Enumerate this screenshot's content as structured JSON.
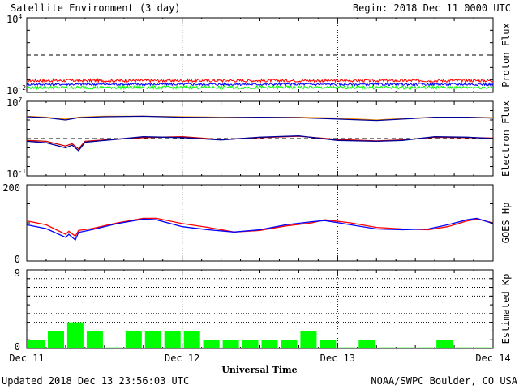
{
  "header": {
    "title": "Satellite Environment (3 day)",
    "begin": "Begin:  2018 Dec 11 0000 UTC"
  },
  "footer": {
    "updated": "Updated 2018 Dec 13 23:56:03 UTC",
    "credit": "NOAA/SWPC Boulder, CO USA"
  },
  "colors": {
    "red": "#ff0000",
    "blue": "#0000ff",
    "green": "#00ff00",
    "orange": "#ff9900",
    "dark_red": "#cc0000",
    "dark_blue": "#000099"
  },
  "x_axis": {
    "label": "Universal Time",
    "ticks": [
      "Dec 11",
      "Dec 12",
      "Dec 13",
      "Dec 14"
    ],
    "xlim": [
      0,
      72
    ],
    "day_markers": [
      24,
      48
    ]
  },
  "chart_data": [
    {
      "id": "proton",
      "type": "line",
      "ylabel": "Proton Flux",
      "scale": "log",
      "ylim_exp": [
        -2,
        4
      ],
      "tick_labels": [
        {
          "base": "10",
          "exp": "4",
          "value_exp": 4
        },
        {
          "base": "10",
          "exp": "-2",
          "value_exp": -2
        }
      ],
      "threshold_exp": 1,
      "series": [
        {
          "color": "#ff0000",
          "base_exp": -1.05,
          "noise": 0.12
        },
        {
          "color": "#0000ff",
          "base_exp": -1.35,
          "noise": 0.1
        },
        {
          "color": "#00ff00",
          "base_exp": -1.6,
          "noise": 0.12
        }
      ]
    },
    {
      "id": "electron",
      "type": "line",
      "ylabel": "Electron Flux",
      "scale": "log",
      "ylim_exp": [
        -1,
        7
      ],
      "tick_labels": [
        {
          "base": "10",
          "exp": "7",
          "value_exp": 7
        },
        {
          "base": "10",
          "exp": "-1",
          "value_exp": -1
        }
      ],
      "threshold_exp": 3,
      "series": [
        {
          "color": "#ff9900",
          "points": [
            [
              0,
              5.4
            ],
            [
              3,
              5.3
            ],
            [
              6,
              5.1
            ],
            [
              8,
              5.3
            ],
            [
              12,
              5.4
            ],
            [
              18,
              5.4
            ],
            [
              24,
              5.35
            ],
            [
              30,
              5.3
            ],
            [
              36,
              5.3
            ],
            [
              42,
              5.3
            ],
            [
              48,
              5.2
            ],
            [
              54,
              5.0
            ],
            [
              58,
              5.15
            ],
            [
              63,
              5.3
            ],
            [
              68,
              5.3
            ],
            [
              72,
              5.25
            ]
          ]
        },
        {
          "color": "#000099",
          "points": [
            [
              0,
              5.35
            ],
            [
              3,
              5.25
            ],
            [
              6,
              5.0
            ],
            [
              8,
              5.25
            ],
            [
              12,
              5.35
            ],
            [
              18,
              5.4
            ],
            [
              24,
              5.3
            ],
            [
              30,
              5.25
            ],
            [
              36,
              5.3
            ],
            [
              42,
              5.25
            ],
            [
              48,
              5.1
            ],
            [
              54,
              4.95
            ],
            [
              58,
              5.1
            ],
            [
              63,
              5.3
            ],
            [
              68,
              5.3
            ],
            [
              72,
              5.2
            ]
          ]
        },
        {
          "color": "#cc0000",
          "points": [
            [
              0,
              2.8
            ],
            [
              3,
              2.7
            ],
            [
              6,
              2.2
            ],
            [
              7,
              2.45
            ],
            [
              8,
              1.9
            ],
            [
              9,
              2.7
            ],
            [
              12,
              2.85
            ],
            [
              18,
              3.1
            ],
            [
              24,
              3.2
            ],
            [
              30,
              2.9
            ],
            [
              36,
              3.1
            ],
            [
              42,
              3.25
            ],
            [
              48,
              2.9
            ],
            [
              54,
              2.75
            ],
            [
              58,
              2.85
            ],
            [
              63,
              3.15
            ],
            [
              68,
              3.1
            ],
            [
              72,
              3.05
            ]
          ]
        },
        {
          "color": "#000099",
          "points": [
            [
              0,
              2.7
            ],
            [
              3,
              2.55
            ],
            [
              6,
              2.0
            ],
            [
              7,
              2.3
            ],
            [
              8,
              1.7
            ],
            [
              9,
              2.6
            ],
            [
              12,
              2.8
            ],
            [
              18,
              3.2
            ],
            [
              24,
              3.1
            ],
            [
              30,
              2.85
            ],
            [
              36,
              3.15
            ],
            [
              42,
              3.3
            ],
            [
              48,
              2.8
            ],
            [
              54,
              2.7
            ],
            [
              58,
              2.8
            ],
            [
              63,
              3.2
            ],
            [
              68,
              3.15
            ],
            [
              72,
              3.0
            ]
          ]
        }
      ]
    },
    {
      "id": "hp",
      "type": "line",
      "ylabel": "GOES Hp",
      "scale": "linear",
      "ylim": [
        0,
        200
      ],
      "tick_labels": [
        {
          "text": "200",
          "value": 200
        },
        {
          "text": "0",
          "value": 0
        }
      ],
      "series": [
        {
          "color": "#ff0000",
          "points": [
            [
              0,
              105
            ],
            [
              3,
              95
            ],
            [
              6,
              70
            ],
            [
              6.5,
              78
            ],
            [
              7.5,
              65
            ],
            [
              8,
              80
            ],
            [
              10,
              85
            ],
            [
              14,
              100
            ],
            [
              18,
              112
            ],
            [
              20,
              112
            ],
            [
              24,
              98
            ],
            [
              28,
              88
            ],
            [
              32,
              76
            ],
            [
              36,
              80
            ],
            [
              40,
              92
            ],
            [
              44,
              100
            ],
            [
              46,
              108
            ],
            [
              50,
              100
            ],
            [
              54,
              88
            ],
            [
              58,
              84
            ],
            [
              62,
              82
            ],
            [
              65,
              90
            ],
            [
              68,
              105
            ],
            [
              69.5,
              110
            ],
            [
              72,
              100
            ]
          ]
        },
        {
          "color": "#0000ff",
          "points": [
            [
              0,
              95
            ],
            [
              3,
              85
            ],
            [
              6,
              62
            ],
            [
              6.5,
              70
            ],
            [
              7.5,
              55
            ],
            [
              8,
              75
            ],
            [
              10,
              82
            ],
            [
              14,
              98
            ],
            [
              18,
              110
            ],
            [
              20,
              108
            ],
            [
              24,
              90
            ],
            [
              28,
              82
            ],
            [
              32,
              76
            ],
            [
              36,
              82
            ],
            [
              40,
              95
            ],
            [
              44,
              103
            ],
            [
              46,
              106
            ],
            [
              50,
              95
            ],
            [
              54,
              84
            ],
            [
              58,
              82
            ],
            [
              62,
              84
            ],
            [
              65,
              95
            ],
            [
              68,
              108
            ],
            [
              69.5,
              112
            ],
            [
              72,
              98
            ]
          ]
        }
      ]
    },
    {
      "id": "kp",
      "type": "bar",
      "ylabel": "Estimated Kp",
      "scale": "linear",
      "ylim": [
        0,
        9
      ],
      "tick_labels": [
        {
          "text": "9",
          "value": 9
        },
        {
          "text": "0",
          "value": 0
        }
      ],
      "gridlines": [
        3,
        4,
        6,
        7,
        8
      ],
      "bar_color": "#00ff00",
      "values": [
        1,
        2,
        3,
        2,
        0,
        2,
        2,
        2,
        2,
        1,
        1,
        1,
        1,
        1,
        2,
        1,
        0,
        1,
        0,
        0,
        0,
        1,
        0,
        0
      ]
    }
  ]
}
